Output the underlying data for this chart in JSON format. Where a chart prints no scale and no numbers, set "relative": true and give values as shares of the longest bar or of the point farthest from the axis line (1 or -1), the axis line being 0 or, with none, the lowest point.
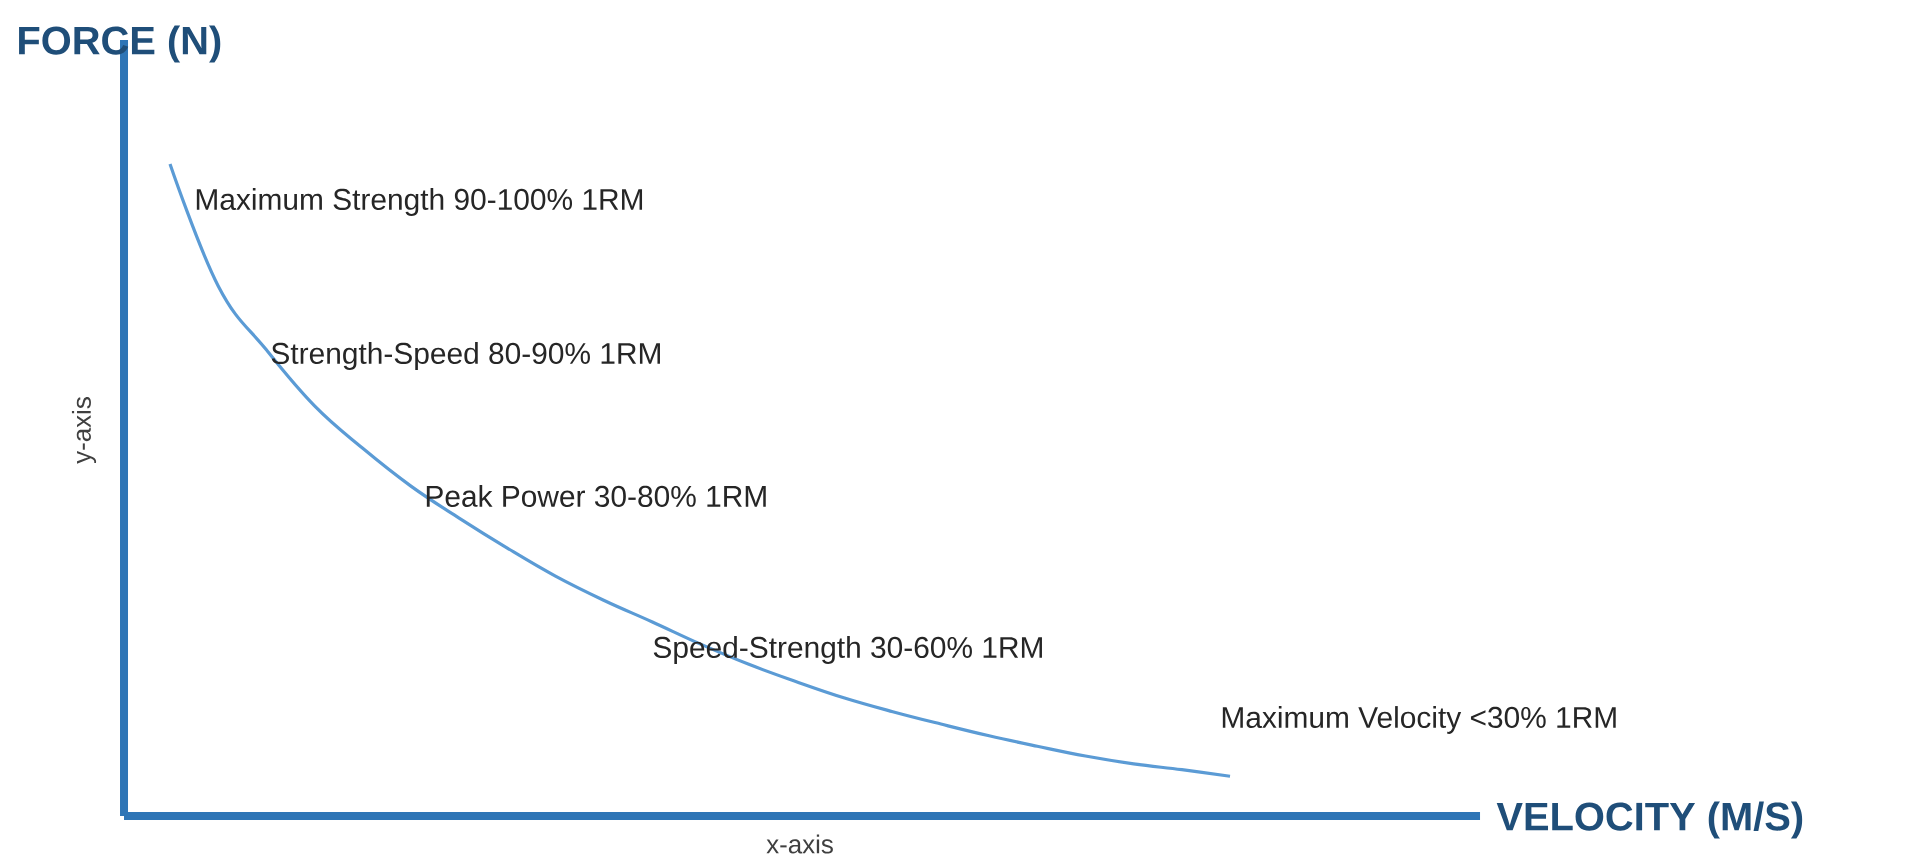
{
  "chart_data": {
    "type": "line",
    "relative": true,
    "color": "#5b9bd5",
    "xlabel": "x-axis",
    "ylabel": "y-axis",
    "categories": [
      null,
      null,
      null,
      null,
      null,
      null,
      null,
      null,
      null,
      null,
      null,
      null,
      null,
      null,
      null,
      null,
      null,
      null,
      null,
      null,
      null,
      null,
      null
    ],
    "values": [
      1,
      0.813,
      0.715,
      0.629,
      0.564,
      0.506,
      0.457,
      0.411,
      0.368,
      0.331,
      0.298,
      0.264,
      0.233,
      0.206,
      0.181,
      0.16,
      0.141,
      0.123,
      0.107,
      0.092,
      0.08,
      0.071,
      0.061
    ],
    "annotations": [
      "FORCE (N)",
      "Maximum Strength 90-100% 1RM",
      "Strength-Speed 80-90% 1RM",
      "Peak Power 30-80% 1RM",
      "Speed-Strength 30-60% 1RM",
      "Maximum Velocity <30% 1RM",
      "VELOCITY (M/S)"
    ]
  }
}
